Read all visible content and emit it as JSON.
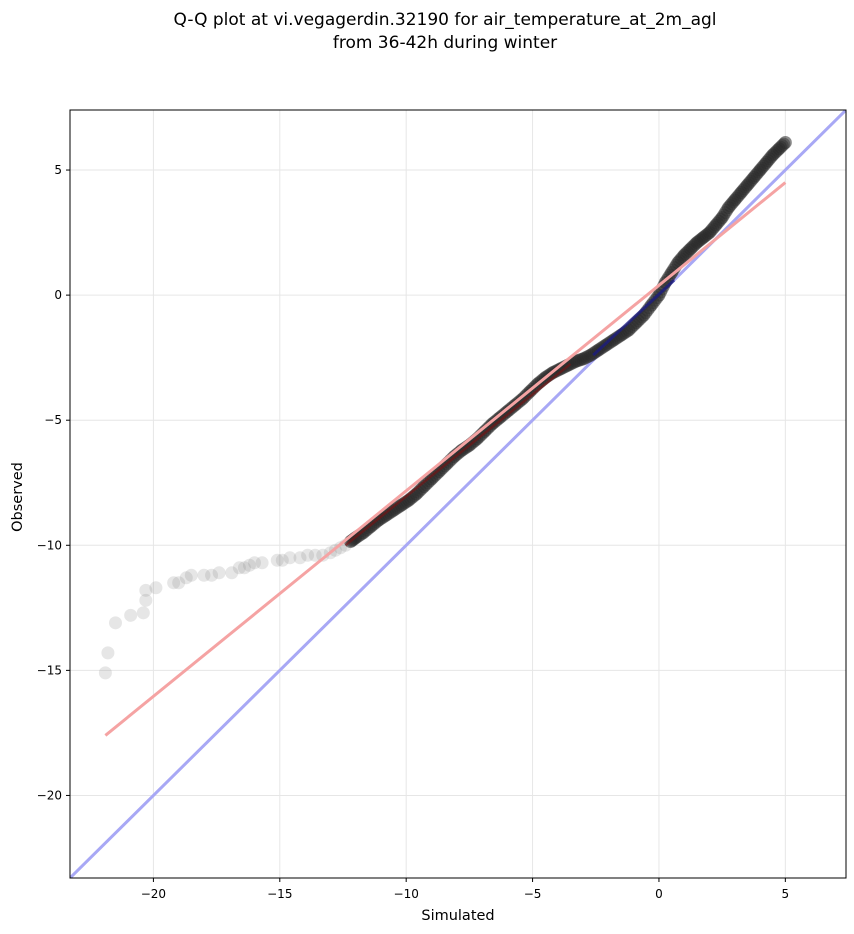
{
  "chart_data": {
    "type": "scatter",
    "title_line1": "Q-Q plot at vi.vegagerdin.32190 for air_temperature_at_2m_agl",
    "title_line2": "from 36-42h during winter",
    "xlabel": "Simulated",
    "ylabel": "Observed",
    "xlim": [
      -23.3,
      7.4
    ],
    "ylim": [
      -23.3,
      7.4
    ],
    "xticks": [
      -20,
      -15,
      -10,
      -5,
      0,
      5
    ],
    "yticks": [
      5,
      0,
      -5,
      -10,
      -15,
      -20
    ],
    "xtick_labels": [
      "−20",
      "−15",
      "−10",
      "−5",
      "0",
      "5"
    ],
    "ytick_labels": [
      "5",
      "0",
      "−5",
      "−10",
      "−15",
      "−20"
    ],
    "grid": true,
    "identity_line": {
      "color": "#a8a8f5",
      "x": [
        -23.3,
        7.4
      ],
      "y": [
        -23.3,
        7.4
      ]
    },
    "fit_line": {
      "color": "#f5a3a3",
      "x": [
        -21.9,
        5.0
      ],
      "y": [
        -17.6,
        4.5
      ]
    },
    "point_color": "#808080",
    "tail_points": [
      [
        -21.9,
        -15.1
      ],
      [
        -21.8,
        -14.3
      ],
      [
        -21.5,
        -13.1
      ],
      [
        -20.9,
        -12.8
      ],
      [
        -20.4,
        -12.7
      ],
      [
        -20.3,
        -12.2
      ],
      [
        -20.3,
        -11.8
      ],
      [
        -19.9,
        -11.7
      ],
      [
        -19.2,
        -11.5
      ],
      [
        -19.0,
        -11.5
      ],
      [
        -18.7,
        -11.3
      ],
      [
        -18.5,
        -11.2
      ],
      [
        -18.0,
        -11.2
      ],
      [
        -17.7,
        -11.2
      ],
      [
        -17.4,
        -11.1
      ],
      [
        -16.9,
        -11.1
      ],
      [
        -16.6,
        -10.9
      ],
      [
        -16.4,
        -10.9
      ],
      [
        -16.2,
        -10.8
      ],
      [
        -16.0,
        -10.7
      ],
      [
        -15.7,
        -10.7
      ],
      [
        -15.1,
        -10.6
      ],
      [
        -14.9,
        -10.6
      ],
      [
        -14.6,
        -10.5
      ],
      [
        -14.2,
        -10.5
      ],
      [
        -13.9,
        -10.4
      ],
      [
        -13.6,
        -10.4
      ],
      [
        -13.3,
        -10.4
      ],
      [
        -13.0,
        -10.3
      ],
      [
        -12.8,
        -10.2
      ],
      [
        -12.6,
        -10.1
      ],
      [
        -12.4,
        -10.0
      ]
    ],
    "body_points": [
      [
        -12.2,
        -9.85
      ],
      [
        -12.0,
        -9.7
      ],
      [
        -11.7,
        -9.5
      ],
      [
        -11.4,
        -9.25
      ],
      [
        -11.1,
        -9.0
      ],
      [
        -10.8,
        -8.8
      ],
      [
        -10.5,
        -8.6
      ],
      [
        -10.2,
        -8.4
      ],
      [
        -9.9,
        -8.2
      ],
      [
        -9.6,
        -7.95
      ],
      [
        -9.3,
        -7.65
      ],
      [
        -9.0,
        -7.35
      ],
      [
        -8.7,
        -7.05
      ],
      [
        -8.4,
        -6.75
      ],
      [
        -8.1,
        -6.45
      ],
      [
        -7.8,
        -6.2
      ],
      [
        -7.5,
        -6.0
      ],
      [
        -7.2,
        -5.75
      ],
      [
        -6.9,
        -5.45
      ],
      [
        -6.6,
        -5.15
      ],
      [
        -6.3,
        -4.9
      ],
      [
        -6.0,
        -4.65
      ],
      [
        -5.7,
        -4.4
      ],
      [
        -5.4,
        -4.15
      ],
      [
        -5.1,
        -3.85
      ],
      [
        -4.8,
        -3.55
      ],
      [
        -4.5,
        -3.3
      ],
      [
        -4.2,
        -3.1
      ],
      [
        -3.9,
        -2.95
      ],
      [
        -3.6,
        -2.8
      ],
      [
        -3.3,
        -2.65
      ],
      [
        -3.0,
        -2.55
      ],
      [
        -2.7,
        -2.4
      ],
      [
        -2.4,
        -2.2
      ],
      [
        -2.1,
        -2.0
      ],
      [
        -1.8,
        -1.8
      ],
      [
        -1.5,
        -1.6
      ],
      [
        -1.2,
        -1.4
      ],
      [
        -0.9,
        -1.1
      ],
      [
        -0.6,
        -0.8
      ],
      [
        -0.3,
        -0.4
      ],
      [
        0.0,
        0.0
      ],
      [
        0.25,
        0.5
      ],
      [
        0.5,
        0.9
      ],
      [
        0.75,
        1.3
      ],
      [
        1.0,
        1.6
      ],
      [
        1.25,
        1.85
      ],
      [
        1.5,
        2.1
      ],
      [
        1.75,
        2.3
      ],
      [
        2.0,
        2.5
      ],
      [
        2.25,
        2.8
      ],
      [
        2.5,
        3.1
      ],
      [
        2.75,
        3.5
      ],
      [
        3.0,
        3.8
      ],
      [
        3.25,
        4.1
      ],
      [
        3.5,
        4.4
      ],
      [
        3.75,
        4.7
      ],
      [
        4.0,
        5.0
      ],
      [
        4.25,
        5.3
      ],
      [
        4.5,
        5.6
      ],
      [
        4.75,
        5.85
      ],
      [
        5.0,
        6.1
      ]
    ]
  }
}
